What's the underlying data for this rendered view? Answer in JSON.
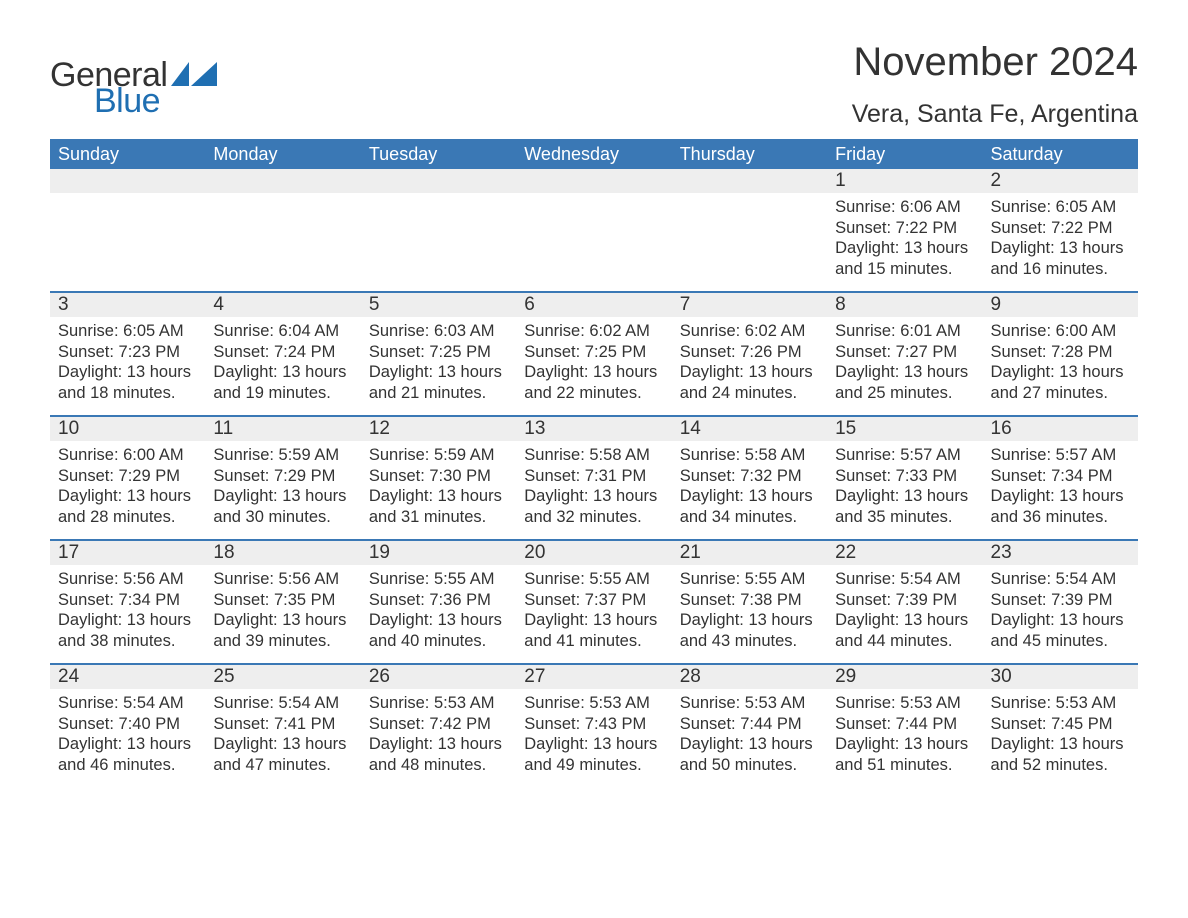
{
  "brand": {
    "general": "General",
    "blue": "Blue"
  },
  "title": "November 2024",
  "location": "Vera, Santa Fe, Argentina",
  "accent_color": "#3a78b5",
  "gray_band": "#eeeeee",
  "days_of_week": [
    "Sunday",
    "Monday",
    "Tuesday",
    "Wednesday",
    "Thursday",
    "Friday",
    "Saturday"
  ],
  "weeks": [
    [
      {
        "blank": true
      },
      {
        "blank": true
      },
      {
        "blank": true
      },
      {
        "blank": true
      },
      {
        "blank": true
      },
      {
        "n": "1",
        "sunrise": "6:06 AM",
        "sunset": "7:22 PM",
        "daylight": "13 hours and 15 minutes."
      },
      {
        "n": "2",
        "sunrise": "6:05 AM",
        "sunset": "7:22 PM",
        "daylight": "13 hours and 16 minutes."
      }
    ],
    [
      {
        "n": "3",
        "sunrise": "6:05 AM",
        "sunset": "7:23 PM",
        "daylight": "13 hours and 18 minutes."
      },
      {
        "n": "4",
        "sunrise": "6:04 AM",
        "sunset": "7:24 PM",
        "daylight": "13 hours and 19 minutes."
      },
      {
        "n": "5",
        "sunrise": "6:03 AM",
        "sunset": "7:25 PM",
        "daylight": "13 hours and 21 minutes."
      },
      {
        "n": "6",
        "sunrise": "6:02 AM",
        "sunset": "7:25 PM",
        "daylight": "13 hours and 22 minutes."
      },
      {
        "n": "7",
        "sunrise": "6:02 AM",
        "sunset": "7:26 PM",
        "daylight": "13 hours and 24 minutes."
      },
      {
        "n": "8",
        "sunrise": "6:01 AM",
        "sunset": "7:27 PM",
        "daylight": "13 hours and 25 minutes."
      },
      {
        "n": "9",
        "sunrise": "6:00 AM",
        "sunset": "7:28 PM",
        "daylight": "13 hours and 27 minutes."
      }
    ],
    [
      {
        "n": "10",
        "sunrise": "6:00 AM",
        "sunset": "7:29 PM",
        "daylight": "13 hours and 28 minutes."
      },
      {
        "n": "11",
        "sunrise": "5:59 AM",
        "sunset": "7:29 PM",
        "daylight": "13 hours and 30 minutes."
      },
      {
        "n": "12",
        "sunrise": "5:59 AM",
        "sunset": "7:30 PM",
        "daylight": "13 hours and 31 minutes."
      },
      {
        "n": "13",
        "sunrise": "5:58 AM",
        "sunset": "7:31 PM",
        "daylight": "13 hours and 32 minutes."
      },
      {
        "n": "14",
        "sunrise": "5:58 AM",
        "sunset": "7:32 PM",
        "daylight": "13 hours and 34 minutes."
      },
      {
        "n": "15",
        "sunrise": "5:57 AM",
        "sunset": "7:33 PM",
        "daylight": "13 hours and 35 minutes."
      },
      {
        "n": "16",
        "sunrise": "5:57 AM",
        "sunset": "7:34 PM",
        "daylight": "13 hours and 36 minutes."
      }
    ],
    [
      {
        "n": "17",
        "sunrise": "5:56 AM",
        "sunset": "7:34 PM",
        "daylight": "13 hours and 38 minutes."
      },
      {
        "n": "18",
        "sunrise": "5:56 AM",
        "sunset": "7:35 PM",
        "daylight": "13 hours and 39 minutes."
      },
      {
        "n": "19",
        "sunrise": "5:55 AM",
        "sunset": "7:36 PM",
        "daylight": "13 hours and 40 minutes."
      },
      {
        "n": "20",
        "sunrise": "5:55 AM",
        "sunset": "7:37 PM",
        "daylight": "13 hours and 41 minutes."
      },
      {
        "n": "21",
        "sunrise": "5:55 AM",
        "sunset": "7:38 PM",
        "daylight": "13 hours and 43 minutes."
      },
      {
        "n": "22",
        "sunrise": "5:54 AM",
        "sunset": "7:39 PM",
        "daylight": "13 hours and 44 minutes."
      },
      {
        "n": "23",
        "sunrise": "5:54 AM",
        "sunset": "7:39 PM",
        "daylight": "13 hours and 45 minutes."
      }
    ],
    [
      {
        "n": "24",
        "sunrise": "5:54 AM",
        "sunset": "7:40 PM",
        "daylight": "13 hours and 46 minutes."
      },
      {
        "n": "25",
        "sunrise": "5:54 AM",
        "sunset": "7:41 PM",
        "daylight": "13 hours and 47 minutes."
      },
      {
        "n": "26",
        "sunrise": "5:53 AM",
        "sunset": "7:42 PM",
        "daylight": "13 hours and 48 minutes."
      },
      {
        "n": "27",
        "sunrise": "5:53 AM",
        "sunset": "7:43 PM",
        "daylight": "13 hours and 49 minutes."
      },
      {
        "n": "28",
        "sunrise": "5:53 AM",
        "sunset": "7:44 PM",
        "daylight": "13 hours and 50 minutes."
      },
      {
        "n": "29",
        "sunrise": "5:53 AM",
        "sunset": "7:44 PM",
        "daylight": "13 hours and 51 minutes."
      },
      {
        "n": "30",
        "sunrise": "5:53 AM",
        "sunset": "7:45 PM",
        "daylight": "13 hours and 52 minutes."
      }
    ]
  ],
  "labels": {
    "sunrise": "Sunrise",
    "sunset": "Sunset",
    "daylight": "Daylight"
  }
}
